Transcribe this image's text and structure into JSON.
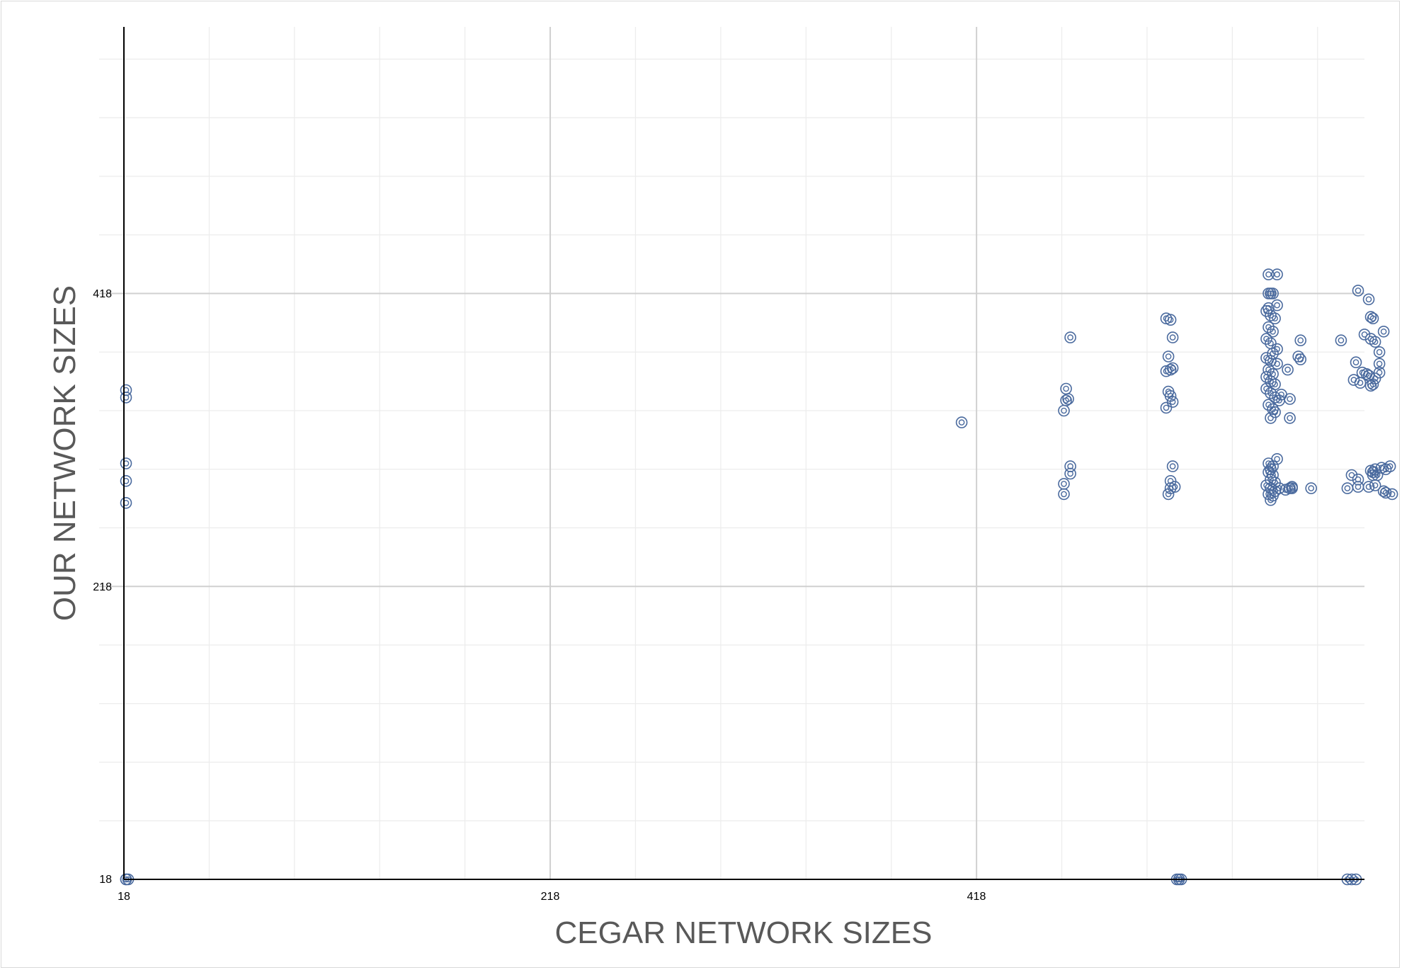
{
  "chart_data": {
    "type": "scatter",
    "title": "",
    "xlabel": "CEGAR NETWORK SIZES",
    "ylabel": "OUR NETWORK SIZES",
    "xlim": [
      18,
      600
    ],
    "ylim": [
      18,
      600
    ],
    "x_ticks": [
      "18",
      "218",
      "418"
    ],
    "y_ticks": [
      "18",
      "218",
      "418"
    ],
    "grid": true,
    "marker": "double-circle",
    "colors": {
      "marker": "#4a6a9e",
      "major_grid": "#d0d0d0",
      "minor_grid": "#ececec",
      "axis": "#000000"
    },
    "series": [
      {
        "points": [
          [
            19,
            18
          ],
          [
            19,
            18
          ],
          [
            20,
            18
          ],
          [
            19,
            352
          ],
          [
            19,
            347
          ],
          [
            19,
            302
          ],
          [
            19,
            290
          ],
          [
            19,
            275
          ],
          [
            411,
            330
          ],
          [
            462,
            388
          ],
          [
            460,
            353
          ],
          [
            461,
            346
          ],
          [
            460,
            345
          ],
          [
            459,
            338
          ],
          [
            462,
            300
          ],
          [
            462,
            295
          ],
          [
            459,
            288
          ],
          [
            459,
            281
          ],
          [
            507,
            401
          ],
          [
            509,
            400
          ],
          [
            510,
            388
          ],
          [
            508,
            375
          ],
          [
            509,
            366
          ],
          [
            507,
            365
          ],
          [
            510,
            367
          ],
          [
            508,
            351
          ],
          [
            509,
            348
          ],
          [
            510,
            344
          ],
          [
            507,
            340
          ],
          [
            510,
            300
          ],
          [
            509,
            290
          ],
          [
            511,
            286
          ],
          [
            509,
            285
          ],
          [
            508,
            281
          ],
          [
            512,
            18
          ],
          [
            513,
            18
          ],
          [
            514,
            18
          ],
          [
            555,
            431
          ],
          [
            559,
            431
          ],
          [
            555,
            418
          ],
          [
            556,
            418
          ],
          [
            557,
            418
          ],
          [
            555,
            408
          ],
          [
            559,
            410
          ],
          [
            554,
            406
          ],
          [
            556,
            403
          ],
          [
            558,
            401
          ],
          [
            555,
            395
          ],
          [
            557,
            392
          ],
          [
            554,
            387
          ],
          [
            556,
            384
          ],
          [
            559,
            380
          ],
          [
            557,
            377
          ],
          [
            554,
            374
          ],
          [
            556,
            372
          ],
          [
            559,
            370
          ],
          [
            555,
            366
          ],
          [
            557,
            363
          ],
          [
            554,
            361
          ],
          [
            556,
            358
          ],
          [
            558,
            356
          ],
          [
            554,
            353
          ],
          [
            556,
            350
          ],
          [
            558,
            347
          ],
          [
            560,
            345
          ],
          [
            555,
            342
          ],
          [
            557,
            339
          ],
          [
            556,
            333
          ],
          [
            558,
            337
          ],
          [
            561,
            349
          ],
          [
            565,
            346
          ],
          [
            565,
            333
          ],
          [
            570,
            386
          ],
          [
            569,
            375
          ],
          [
            570,
            373
          ],
          [
            564,
            366
          ],
          [
            555,
            302
          ],
          [
            557,
            300
          ],
          [
            556,
            298
          ],
          [
            555,
            296
          ],
          [
            557,
            294
          ],
          [
            556,
            291
          ],
          [
            558,
            289
          ],
          [
            554,
            287
          ],
          [
            556,
            285
          ],
          [
            558,
            283
          ],
          [
            555,
            281
          ],
          [
            557,
            280
          ],
          [
            556,
            277
          ],
          [
            559,
            305
          ],
          [
            560,
            285
          ],
          [
            563,
            284
          ],
          [
            565,
            285
          ],
          [
            566,
            286
          ],
          [
            566,
            285
          ],
          [
            575,
            285
          ],
          [
            589,
            386
          ],
          [
            597,
            420
          ],
          [
            602,
            414
          ],
          [
            603,
            402
          ],
          [
            604,
            401
          ],
          [
            600,
            390
          ],
          [
            603,
            387
          ],
          [
            605,
            385
          ],
          [
            609,
            392
          ],
          [
            607,
            378
          ],
          [
            607,
            370
          ],
          [
            607,
            364
          ],
          [
            605,
            360
          ],
          [
            602,
            362
          ],
          [
            599,
            364
          ],
          [
            596,
            371
          ],
          [
            595,
            359
          ],
          [
            598,
            357
          ],
          [
            601,
            363
          ],
          [
            603,
            355
          ],
          [
            604,
            356
          ],
          [
            605,
            298
          ],
          [
            603,
            297
          ],
          [
            604,
            296
          ],
          [
            608,
            299
          ],
          [
            610,
            298
          ],
          [
            612,
            300
          ],
          [
            594,
            294
          ],
          [
            597,
            291
          ],
          [
            604,
            294
          ],
          [
            606,
            294
          ],
          [
            592,
            285
          ],
          [
            597,
            286
          ],
          [
            602,
            286
          ],
          [
            605,
            287
          ],
          [
            609,
            283
          ],
          [
            610,
            282
          ],
          [
            613,
            281
          ],
          [
            592,
            18
          ],
          [
            594,
            18
          ],
          [
            596,
            18
          ]
        ]
      }
    ]
  }
}
